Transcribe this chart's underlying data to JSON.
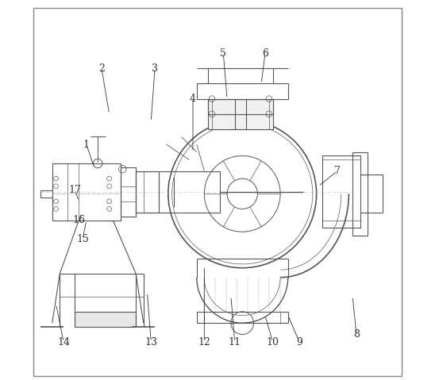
{
  "title": "",
  "background_color": "#ffffff",
  "line_color": "#555555",
  "label_color": "#333333",
  "label_fontsize": 9,
  "fig_width": 5.53,
  "fig_height": 4.79,
  "dpi": 100,
  "labels": {
    "1": [
      0.17,
      0.58,
      0.22,
      0.52
    ],
    "2": [
      0.19,
      0.82,
      0.27,
      0.73
    ],
    "3": [
      0.34,
      0.82,
      0.38,
      0.72
    ],
    "4": [
      0.44,
      0.74,
      0.46,
      0.65
    ],
    "5": [
      0.52,
      0.87,
      0.52,
      0.8
    ],
    "6": [
      0.63,
      0.87,
      0.61,
      0.82
    ],
    "7": [
      0.82,
      0.55,
      0.75,
      0.53
    ],
    "8": [
      0.88,
      0.1,
      0.85,
      0.18
    ],
    "9": [
      0.72,
      0.1,
      0.7,
      0.18
    ],
    "10": [
      0.65,
      0.1,
      0.63,
      0.2
    ],
    "11": [
      0.55,
      0.1,
      0.54,
      0.22
    ],
    "12": [
      0.47,
      0.1,
      0.47,
      0.3
    ],
    "13": [
      0.33,
      0.1,
      0.33,
      0.25
    ],
    "14": [
      0.1,
      0.1,
      0.12,
      0.28
    ],
    "15": [
      0.15,
      0.38,
      0.17,
      0.44
    ],
    "16": [
      0.15,
      0.43,
      0.17,
      0.48
    ],
    "17": [
      0.14,
      0.49,
      0.17,
      0.53
    ]
  }
}
